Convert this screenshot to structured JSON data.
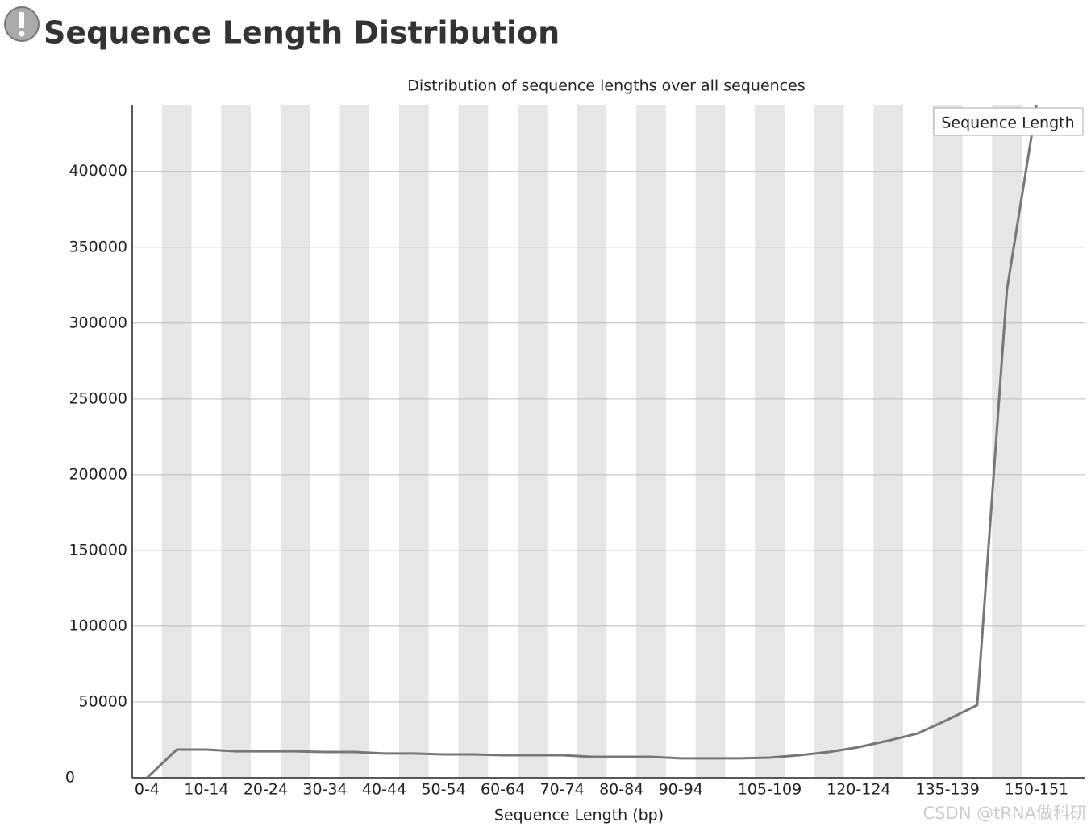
{
  "header": {
    "title": "Sequence Length Distribution"
  },
  "watermark": "CSDN @tRNA做科研",
  "chart_data": {
    "type": "line",
    "title": "Distribution of sequence lengths over all sequences",
    "x_label": "Sequence Length (bp)",
    "categories": [
      "0-4",
      null,
      "10-14",
      null,
      "20-24",
      null,
      "30-34",
      null,
      "40-44",
      null,
      "50-54",
      null,
      "60-64",
      null,
      "70-74",
      null,
      "80-84",
      null,
      "90-94",
      null,
      null,
      "105-109",
      null,
      null,
      "120-124",
      null,
      null,
      "135-139",
      null,
      null,
      "150-151"
    ],
    "series": [
      {
        "name": "Sequence Length",
        "color": "#777777",
        "values": [
          0,
          18600,
          18600,
          17500,
          17500,
          17500,
          17000,
          17000,
          16000,
          16000,
          15400,
          15400,
          14900,
          14900,
          14900,
          13800,
          13800,
          13800,
          12800,
          12800,
          12800,
          13300,
          14900,
          17000,
          20200,
          24500,
          29300,
          38300,
          47900,
          321800,
          444000
        ]
      }
    ],
    "ylim": [
      0,
      444000
    ],
    "yticks": [
      0,
      50000,
      100000,
      150000,
      200000,
      250000,
      300000,
      350000,
      400000
    ],
    "grid": true,
    "legend": "top-right"
  }
}
